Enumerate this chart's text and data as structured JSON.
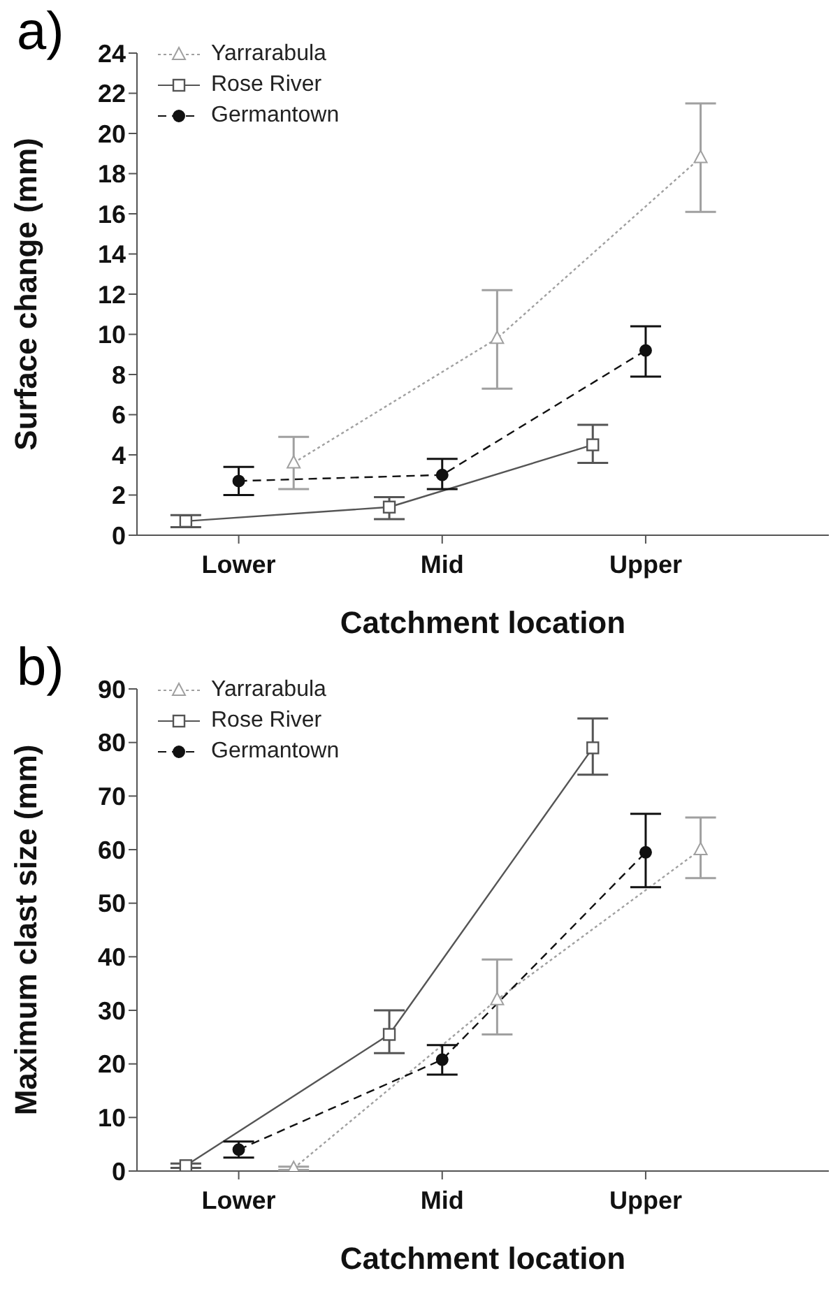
{
  "chart_data": [
    {
      "type": "line",
      "title": "a)",
      "xlabel": "Catchment location",
      "ylabel": "Surface change (mm)",
      "categories": [
        "Lower",
        "Mid",
        "Upper"
      ],
      "ylim": [
        0,
        24
      ],
      "yticks": [
        0,
        2,
        4,
        6,
        8,
        10,
        12,
        14,
        16,
        18,
        20,
        22,
        24
      ],
      "legend": "top left",
      "grid": false,
      "series": [
        {
          "name": "Yarrarabula",
          "color": "#a0a0a0",
          "marker": "triangle",
          "line_style": "dotted",
          "values": [
            3.6,
            9.8,
            18.8
          ],
          "errors": [
            [
              2.3,
              4.9
            ],
            [
              7.3,
              12.2
            ],
            [
              16.1,
              21.5
            ]
          ]
        },
        {
          "name": "Rose River",
          "color": "#555555",
          "marker": "square",
          "line_style": "solid",
          "values": [
            0.7,
            1.4,
            4.5
          ],
          "errors": [
            [
              0.4,
              1.0
            ],
            [
              0.8,
              1.9
            ],
            [
              3.6,
              5.5
            ]
          ]
        },
        {
          "name": "Germantown",
          "color": "#111111",
          "marker": "circle",
          "line_style": "dashed",
          "values": [
            2.7,
            3.0,
            9.2
          ],
          "errors": [
            [
              2.0,
              3.4
            ],
            [
              2.3,
              3.8
            ],
            [
              7.9,
              10.4
            ]
          ]
        }
      ]
    },
    {
      "type": "line",
      "title": "b)",
      "xlabel": "Catchment location",
      "ylabel": "Maximum clast size (mm)",
      "categories": [
        "Lower",
        "Mid",
        "Upper"
      ],
      "ylim": [
        0,
        90
      ],
      "yticks": [
        0,
        10,
        20,
        30,
        40,
        50,
        60,
        70,
        80,
        90
      ],
      "legend": "top left",
      "grid": false,
      "series": [
        {
          "name": "Yarrarabula",
          "color": "#a0a0a0",
          "marker": "triangle",
          "line_style": "dotted",
          "values": [
            0.5,
            32,
            60
          ],
          "errors": [
            [
              0.2,
              0.8
            ],
            [
              25.5,
              39.5
            ],
            [
              54.7,
              66
            ]
          ]
        },
        {
          "name": "Rose River",
          "color": "#555555",
          "marker": "square",
          "line_style": "solid",
          "values": [
            1,
            25.5,
            79
          ],
          "errors": [
            [
              0.6,
              1.4
            ],
            [
              22,
              30
            ],
            [
              74,
              84.5
            ]
          ]
        },
        {
          "name": "Germantown",
          "color": "#111111",
          "marker": "circle",
          "line_style": "dashed",
          "values": [
            4,
            20.8,
            59.5
          ],
          "errors": [
            [
              2.5,
              5.5
            ],
            [
              18,
              23.5
            ],
            [
              53,
              66.7
            ]
          ]
        }
      ]
    }
  ]
}
